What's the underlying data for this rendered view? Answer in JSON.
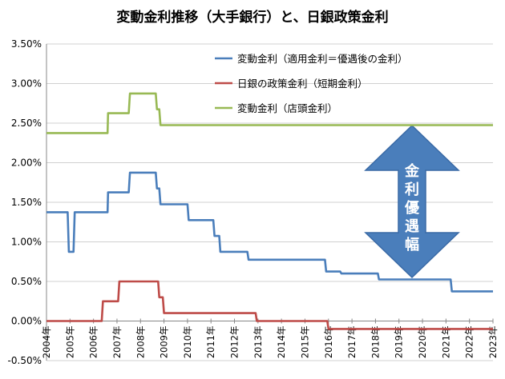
{
  "chart_data": {
    "type": "line",
    "title": "変動金利推移（大手銀行）と、日銀政策金利",
    "ylim": [
      -0.005,
      0.035
    ],
    "yticks": [
      "-0.50%",
      "0.00%",
      "0.50%",
      "1.00%",
      "1.50%",
      "2.00%",
      "2.50%",
      "3.00%",
      "3.50%"
    ],
    "xlim": [
      2004,
      2023
    ],
    "xticks": [
      "2004年",
      "2005年",
      "2006年",
      "2007年",
      "2008年",
      "2009年",
      "2010年",
      "2011年",
      "2012年",
      "2013年",
      "2014年",
      "2015年",
      "2016年",
      "2017年",
      "2018年",
      "2019年",
      "2020年",
      "2021年",
      "2022年",
      "2023年"
    ],
    "legend_position": "top-right",
    "grid": "horizontal",
    "annotation": "金利優遇幅",
    "annotation_chars": [
      "金",
      "利",
      "優",
      "遇",
      "幅"
    ],
    "series": [
      {
        "name": "変動金利（適用金利＝優遇後の金利）",
        "color": "#4a7ebb",
        "points": [
          [
            2004.0,
            0.01375
          ],
          [
            2004.9,
            0.01375
          ],
          [
            2004.95,
            0.00875
          ],
          [
            2005.15,
            0.00875
          ],
          [
            2005.2,
            0.01375
          ],
          [
            2006.6,
            0.01375
          ],
          [
            2006.62,
            0.01625
          ],
          [
            2007.5,
            0.01625
          ],
          [
            2007.55,
            0.01875
          ],
          [
            2008.65,
            0.01875
          ],
          [
            2008.7,
            0.01675
          ],
          [
            2008.8,
            0.01675
          ],
          [
            2008.85,
            0.01475
          ],
          [
            2010.0,
            0.01475
          ],
          [
            2010.05,
            0.01275
          ],
          [
            2011.1,
            0.01275
          ],
          [
            2011.15,
            0.01075
          ],
          [
            2011.35,
            0.01075
          ],
          [
            2011.4,
            0.00875
          ],
          [
            2012.55,
            0.00875
          ],
          [
            2012.6,
            0.00775
          ],
          [
            2015.85,
            0.00775
          ],
          [
            2015.9,
            0.00625
          ],
          [
            2016.5,
            0.00625
          ],
          [
            2016.55,
            0.006
          ],
          [
            2018.1,
            0.006
          ],
          [
            2018.15,
            0.00525
          ],
          [
            2021.2,
            0.00525
          ],
          [
            2021.25,
            0.00375
          ],
          [
            2023.0,
            0.00375
          ]
        ]
      },
      {
        "name": "日銀の政策金利（短期金利）",
        "color": "#be4b48",
        "points": [
          [
            2004.0,
            0.0
          ],
          [
            2006.35,
            0.0
          ],
          [
            2006.4,
            0.0025
          ],
          [
            2007.05,
            0.0025
          ],
          [
            2007.1,
            0.005
          ],
          [
            2008.75,
            0.005
          ],
          [
            2008.8,
            0.003
          ],
          [
            2008.95,
            0.003
          ],
          [
            2009.0,
            0.001
          ],
          [
            2012.9,
            0.001
          ],
          [
            2012.95,
            0.0
          ],
          [
            2015.95,
            0.0
          ],
          [
            2016.0,
            -0.001
          ],
          [
            2023.0,
            -0.001
          ]
        ]
      },
      {
        "name": "変動金利（店頭金利）",
        "color": "#98b954",
        "points": [
          [
            2004.0,
            0.02375
          ],
          [
            2006.6,
            0.02375
          ],
          [
            2006.62,
            0.02625
          ],
          [
            2007.5,
            0.02625
          ],
          [
            2007.55,
            0.02875
          ],
          [
            2008.65,
            0.02875
          ],
          [
            2008.7,
            0.02675
          ],
          [
            2008.8,
            0.02675
          ],
          [
            2008.85,
            0.02475
          ],
          [
            2023.0,
            0.02475
          ]
        ]
      }
    ]
  }
}
